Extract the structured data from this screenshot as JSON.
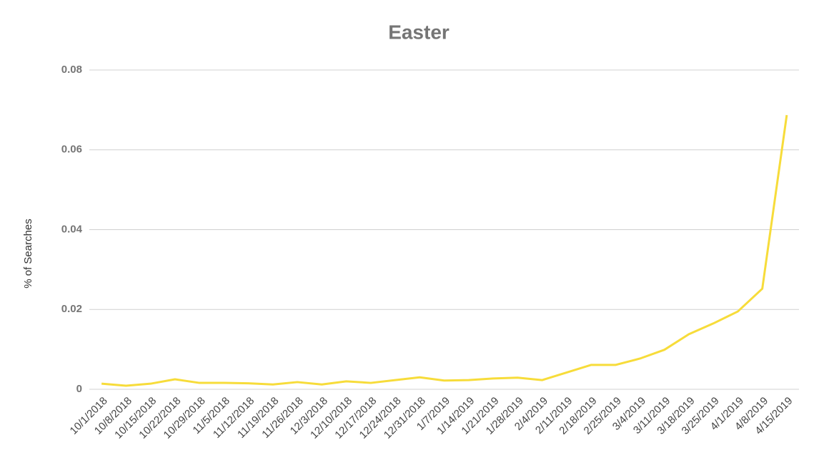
{
  "chart_data": {
    "type": "line",
    "title": "Easter",
    "y_label": "% of Searches",
    "categories": [
      "10/1/2018",
      "10/8/2018",
      "10/15/2018",
      "10/22/2018",
      "10/29/2018",
      "11/5/2018",
      "11/12/2018",
      "11/19/2018",
      "11/26/2018",
      "12/3/2018",
      "12/10/2018",
      "12/17/2018",
      "12/24/2018",
      "12/31/2018",
      "1/7/2019",
      "1/14/2019",
      "1/21/2019",
      "1/28/2019",
      "2/4/2019",
      "2/11/2019",
      "2/18/2019",
      "2/25/2019",
      "3/4/2019",
      "3/11/2019",
      "3/18/2019",
      "3/25/2019",
      "4/1/2019",
      "4/8/2019",
      "4/15/2019"
    ],
    "values": [
      0.0014,
      0.0009,
      0.0014,
      0.0025,
      0.0016,
      0.0016,
      0.0015,
      0.0012,
      0.0018,
      0.0012,
      0.002,
      0.0016,
      0.0023,
      0.003,
      0.0022,
      0.0023,
      0.0027,
      0.0029,
      0.0023,
      0.0042,
      0.0061,
      0.0061,
      0.0077,
      0.0099,
      0.0138,
      0.0165,
      0.0195,
      0.0252,
      0.0687
    ],
    "color": "#f7dc3a",
    "ylim": [
      0,
      0.08
    ],
    "yticks": [
      0,
      0.02,
      0.04,
      0.06,
      0.08
    ],
    "grid": true
  }
}
